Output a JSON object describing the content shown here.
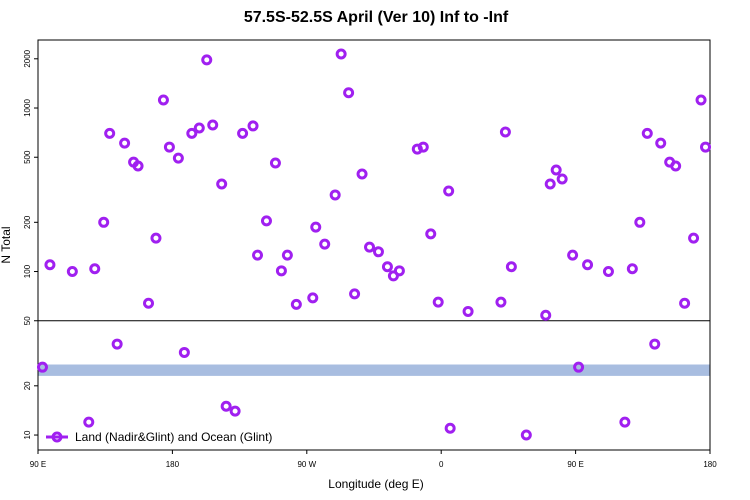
{
  "chart_data": {
    "type": "scatter",
    "title": "57.5S-52.5S April (Ver 10)   Inf to -Inf",
    "x_label": "Longitude (deg E)",
    "y_label": "N Total",
    "log_y": true,
    "xlim": [
      90,
      540
    ],
    "xticks": [
      {
        "value": 90,
        "label": "90 E"
      },
      180,
      {
        "value": 270,
        "label": "90 W"
      },
      {
        "value": 360,
        "label": "0"
      },
      {
        "value": 450,
        "label": "90 E"
      },
      {
        "value": 540,
        "label": "180"
      }
    ],
    "ylim": [
      8.1,
      2606
    ],
    "yticks": [
      10,
      20,
      50,
      100,
      200,
      500,
      1000,
      2000
    ],
    "hline": 50,
    "band": [
      23,
      27
    ],
    "band_color": "#a8bde0",
    "legend": "bottom-left",
    "series": [
      {
        "name": "Land (Nadir&Glint) and Ocean (Glint)",
        "color": "#a020f0",
        "x": [
          93,
          98,
          113,
          124,
          128,
          134,
          138,
          143,
          148,
          154,
          157,
          164,
          169,
          174,
          178,
          184,
          188,
          193,
          198,
          203,
          207,
          213,
          216,
          222,
          227,
          234,
          237,
          243,
          249,
          253,
          257,
          263,
          274,
          276,
          282,
          289,
          293,
          298,
          302,
          307,
          312,
          318,
          324,
          328,
          332,
          344,
          348,
          353,
          358,
          365,
          366,
          378,
          400,
          403,
          407,
          417,
          430,
          433,
          437,
          441,
          448,
          452,
          458,
          472,
          483,
          488,
          493,
          498,
          503,
          507,
          513,
          517,
          523,
          529,
          534,
          537
        ],
        "values": [
          26,
          110,
          100,
          12,
          104,
          200,
          700,
          36,
          610,
          467,
          442,
          64,
          160,
          1120,
          577,
          494,
          32,
          700,
          755,
          1970,
          787,
          343,
          15,
          14,
          700,
          777,
          126,
          204,
          461,
          101,
          126,
          63,
          69,
          187,
          147,
          294,
          2140,
          1240,
          73,
          395,
          141,
          132,
          107,
          94,
          101,
          561,
          577,
          170,
          65,
          311,
          11,
          57,
          65,
          713,
          107,
          10,
          54,
          343,
          418,
          368,
          126,
          26,
          110,
          100,
          12,
          104,
          200,
          700,
          36,
          610,
          467,
          442,
          64,
          160,
          1120,
          577
        ]
      }
    ]
  }
}
